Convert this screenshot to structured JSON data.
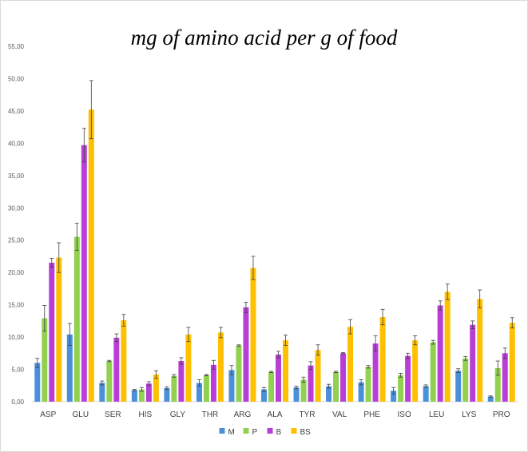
{
  "chart_data": {
    "type": "bar",
    "title": "mg of amino acid per g of food",
    "xlabel": "",
    "ylabel": "",
    "ylim": [
      0,
      55
    ],
    "y_ticks": [
      "0,00",
      "5,00",
      "10,00",
      "15,00",
      "20,00",
      "25,00",
      "30,00",
      "35,00",
      "40,00",
      "45,00",
      "50,00",
      "55,00"
    ],
    "grid": false,
    "legend_position": "bottom",
    "error_bars": true,
    "categories": [
      "ASP",
      "GLU",
      "SER",
      "HIS",
      "GLY",
      "THR",
      "ARG",
      "ALA",
      "TYR",
      "VAL",
      "PHE",
      "ISO",
      "LEU",
      "LYS",
      "PRO"
    ],
    "series": [
      {
        "name": "M",
        "color": "#4a90d9",
        "values": [
          6.0,
          10.4,
          2.9,
          1.8,
          2.1,
          2.9,
          4.9,
          1.9,
          2.2,
          2.4,
          3.0,
          1.7,
          2.4,
          4.8,
          0.8
        ],
        "errors": [
          0.7,
          1.7,
          0.3,
          0.1,
          0.2,
          0.5,
          0.7,
          0.3,
          0.2,
          0.3,
          0.4,
          0.5,
          0.2,
          0.3,
          0.1
        ]
      },
      {
        "name": "P",
        "color": "#92d050",
        "values": [
          12.9,
          25.5,
          6.3,
          1.9,
          4.0,
          4.1,
          8.7,
          4.6,
          3.4,
          4.6,
          5.4,
          4.1,
          9.2,
          6.7,
          5.2
        ],
        "errors": [
          2.0,
          2.1,
          0.1,
          0.3,
          0.2,
          0.1,
          0.1,
          0.1,
          0.4,
          0.1,
          0.2,
          0.3,
          0.3,
          0.3,
          1.1
        ]
      },
      {
        "name": "B",
        "color": "#b83fd6",
        "values": [
          21.5,
          39.7,
          9.9,
          2.8,
          6.3,
          5.7,
          14.6,
          7.3,
          5.6,
          7.5,
          9.0,
          7.1,
          14.9,
          11.9,
          7.5
        ],
        "errors": [
          0.7,
          2.6,
          0.6,
          0.3,
          0.5,
          0.7,
          0.8,
          0.5,
          0.6,
          0.1,
          1.2,
          0.4,
          0.7,
          0.6,
          0.8
        ]
      },
      {
        "name": "BS",
        "color": "#ffc000",
        "values": [
          22.3,
          45.2,
          12.6,
          4.2,
          10.4,
          10.7,
          20.7,
          9.5,
          8.0,
          11.6,
          13.1,
          9.5,
          17.0,
          15.9,
          12.2
        ],
        "errors": [
          2.3,
          4.5,
          0.9,
          0.6,
          1.1,
          0.8,
          1.8,
          0.8,
          0.8,
          1.1,
          1.2,
          0.7,
          1.2,
          1.4,
          0.8
        ]
      }
    ]
  }
}
